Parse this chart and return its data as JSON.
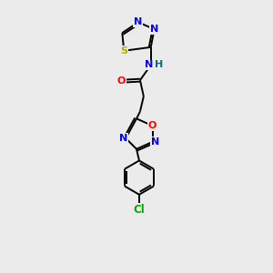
{
  "background_color": "#ebebeb",
  "bond_color": "#000000",
  "atom_colors": {
    "N": "#0000ff",
    "O": "#ff0000",
    "S": "#bbaa00",
    "Cl": "#00aa00",
    "H": "#007070"
  },
  "figsize": [
    3.0,
    3.0
  ],
  "dpi": 100,
  "xlim": [
    0,
    10
  ],
  "ylim": [
    0,
    15
  ]
}
